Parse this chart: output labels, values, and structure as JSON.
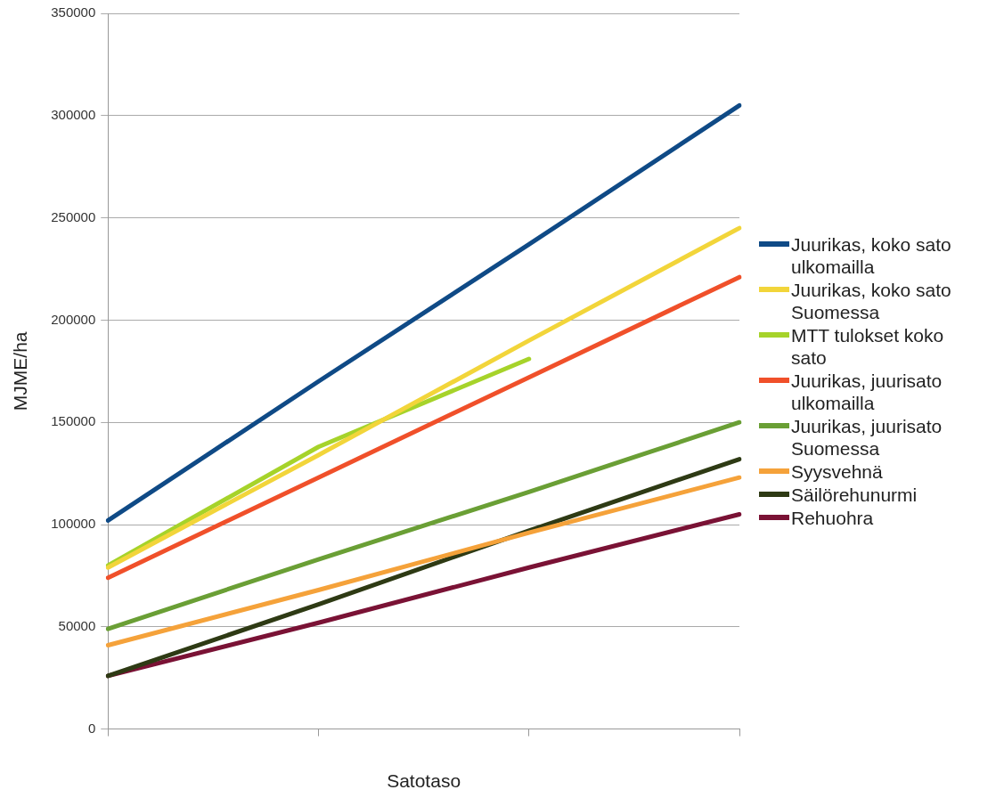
{
  "chart_data": {
    "type": "line",
    "xlabel": "Satotaso",
    "ylabel": "MJME/ha",
    "categories": [
      null,
      null,
      null,
      null
    ],
    "series": [
      {
        "name": "Juurikas, koko sato ulkomailla",
        "color": "#0f4a86",
        "values": [
          102000,
          170000,
          237000,
          305000
        ]
      },
      {
        "name": "Juurikas, koko sato Suomessa",
        "color": "#f2d53a",
        "values": [
          79000,
          134000,
          190000,
          245000
        ]
      },
      {
        "name": "MTT tulokset koko sato",
        "color": "#a6d32a",
        "values": [
          80000,
          138000,
          181000,
          null
        ]
      },
      {
        "name": "Juurikas, juurisato ulkomailla",
        "color": "#f0502a",
        "values": [
          74000,
          123000,
          172000,
          221000
        ]
      },
      {
        "name": "Juurikas, juurisato Suomessa",
        "color": "#6a9f35",
        "values": [
          49000,
          83000,
          116000,
          150000
        ]
      },
      {
        "name": "Syysvehnä",
        "color": "#f5a23a",
        "values": [
          41000,
          68000,
          96000,
          123000
        ]
      },
      {
        "name": "Säilörehunurmi",
        "color": "#2e3a14",
        "values": [
          26000,
          61000,
          97000,
          132000
        ]
      },
      {
        "name": "Rehuohra",
        "color": "#7a1235",
        "values": [
          26000,
          52000,
          79000,
          105000
        ]
      }
    ],
    "ylim": [
      0,
      350000
    ],
    "yticks": [
      0,
      50000,
      100000,
      150000,
      200000,
      250000,
      300000,
      350000
    ],
    "grid": "y",
    "legend": "right",
    "marker": "none",
    "line_style": "solid"
  }
}
